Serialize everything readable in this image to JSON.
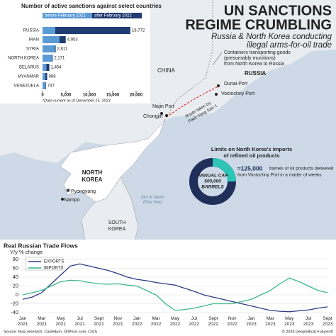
{
  "header": {
    "title_lines": [
      "UN SANCTIONS",
      "REGIME CRUMBLING"
    ],
    "subtitle_lines": [
      "Russia & North Korea conducting",
      "illegal arms-for-oil trade"
    ]
  },
  "chart_data": [
    {
      "type": "bar",
      "title": "Number of active sanctions against select countries",
      "categories": [
        "RUSSIA",
        "IRAN",
        "SYRIA",
        "NORTH KOREA",
        "BELARUS",
        "MYANMAR",
        "VENEZUELA"
      ],
      "series": [
        {
          "name": "before February 2022",
          "color": "#5b9bd5",
          "values": [
            2700,
            3600,
            2600,
            2050,
            800,
            600,
            650
          ]
        },
        {
          "name": "after February 2022",
          "color": "#1f3c73",
          "values": [
            16072,
            1353,
            211,
            121,
            654,
            388,
            97
          ]
        }
      ],
      "totals": [
        18772,
        4953,
        2811,
        2171,
        1454,
        988,
        747
      ],
      "total_labels": [
        "18,772",
        "4,953",
        "2,811",
        "2,171",
        "1,454",
        "988",
        "747"
      ],
      "xlim": [
        0,
        20000
      ],
      "xticks": [
        0,
        {
          "value": 5000,
          "label": "5,000"
        },
        {
          "value": 10000,
          "label": "10,000"
        },
        {
          "value": 15000,
          "label": "15,000"
        },
        {
          "value": 20000,
          "label": "20,000"
        }
      ],
      "note": "*Data current as of December 15, 2023"
    },
    {
      "type": "donut",
      "title_lines": [
        "Limits on North Korea's imports",
        "of refined oil products"
      ],
      "center_lines": [
        "ANNUAL CAP",
        "500,000",
        "BARRELS"
      ],
      "cap": 500000,
      "delivered": 125000,
      "delivered_label": "≈125,000",
      "text_lines": [
        "barrels of oil products delivered",
        "from Vostochny Port in a matter of weeks"
      ],
      "colors": [
        "#2ec4b6",
        "#1f2f5a"
      ]
    },
    {
      "type": "line",
      "title": "Real Russian Trade Flows",
      "subtitle": "Y/y % change",
      "categories": [
        "Jan 2021",
        null,
        "Mar 2021",
        null,
        "May 2021",
        null,
        "Jul 2021",
        null,
        "Sept 2021",
        null,
        "Nov 2021",
        null,
        "Jan 2022",
        null,
        "Mar 2022",
        null,
        "May 2022",
        null,
        "Jul 2022",
        null,
        "Sept 2022",
        null,
        "Nov 2022",
        null,
        "Jan 2023",
        null,
        "Mar 2023",
        null,
        "May 2023",
        null,
        "Jul 2023",
        null,
        "Sept 2023"
      ],
      "series": [
        {
          "name": "EXPORTS",
          "color": "#2e3a87",
          "values": [
            -10,
            -5,
            5,
            25,
            45,
            65,
            70,
            65,
            60,
            55,
            48,
            40,
            35,
            32,
            28,
            25,
            22,
            15,
            8,
            0,
            -5,
            -10,
            -15,
            -20,
            -25,
            -30,
            -35,
            -37,
            -38,
            -36,
            -34,
            -30,
            -27
          ]
        },
        {
          "name": "IMPORTS",
          "color": "#3cb88a",
          "values": [
            0,
            5,
            10,
            20,
            30,
            33,
            32,
            28,
            25,
            24,
            25,
            22,
            20,
            10,
            0,
            -20,
            -35,
            -33,
            -30,
            -25,
            -20,
            -20,
            -20,
            -15,
            -10,
            0,
            10,
            25,
            38,
            30,
            20,
            10,
            5
          ]
        }
      ],
      "ylim": [
        -40,
        80
      ],
      "yticks": [
        -40,
        -20,
        0,
        20,
        40,
        60,
        80
      ],
      "grid": true
    }
  ],
  "map": {
    "labels": {
      "china": "CHINA",
      "russia": "RUSSIA",
      "north_korea_lines": [
        "NORTH",
        "KOREA"
      ],
      "south_korea_lines": [
        "SOUTH",
        "KOREA"
      ],
      "najin": "Najin Port",
      "chongjin": "Chongjin",
      "dunai": "Dunai Port",
      "vostochny": "Vostochny Port",
      "pyongyang": "Pyongyang",
      "nampo": "Nampo",
      "sea_lines": [
        "Sea of Japan",
        "(East Sea)"
      ]
    },
    "containers_note": [
      "Containers transporting goods",
      "(presumably munitions)",
      "from North Korea to Russia"
    ],
    "route_lines": [
      "Route taken by",
      "Paek Yang San 1"
    ]
  },
  "footer": {
    "source": "Source: Rusi research, Castellum, OilPrice.com, CSIS",
    "copyright": "© 2024 Geopolitical Futures®"
  }
}
